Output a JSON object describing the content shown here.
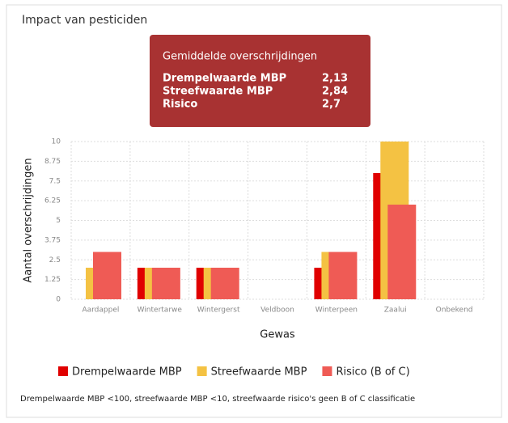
{
  "panel_title": "Impact van pesticiden",
  "tooltip": {
    "title": "Gemiddelde overschrijdingen",
    "rows": [
      [
        "Drempelwaarde MBP",
        "2,13"
      ],
      [
        "Streefwaarde MBP",
        "2,84"
      ],
      [
        "Risico",
        "2,7"
      ]
    ]
  },
  "chart_data": {
    "type": "bar",
    "y_label": "Aantal overschrijdingen",
    "x_label": "Gewas",
    "categories": [
      "Aardappel",
      "Wintertarwe",
      "Wintergerst",
      "Veldboon",
      "Winterpeen",
      "Zaalui",
      "Onbekend"
    ],
    "series": [
      {
        "name": "Drempelwaarde MBP",
        "color": "#e00000",
        "values": [
          0,
          2,
          2,
          0,
          2,
          8,
          0
        ]
      },
      {
        "name": "Streefwaarde MBP",
        "color": "#f4c243",
        "values": [
          2,
          2,
          2,
          0,
          3,
          10,
          0
        ]
      },
      {
        "name": "Risico (B of C)",
        "color": "#ef5b55",
        "values": [
          3,
          2,
          2,
          0,
          3,
          6,
          0
        ]
      }
    ],
    "ylim": [
      0,
      10
    ],
    "yticks": [
      0,
      1.25,
      2.5,
      3.75,
      5,
      6.25,
      7.5,
      8.75,
      10
    ],
    "grid": true,
    "legend": "bottom"
  },
  "footnote": "Drempelwaarde MBP <100, streefwaarde MBP <10, streefwaarde risico's geen B of C classificatie"
}
